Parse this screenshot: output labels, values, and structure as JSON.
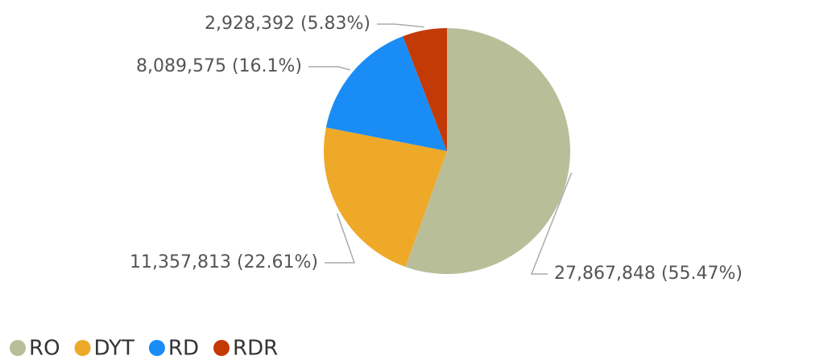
{
  "chart_data": {
    "type": "pie",
    "categories": [
      "RO",
      "DYT",
      "RD",
      "RDR"
    ],
    "values": [
      27867848,
      11357813,
      8089575,
      2928392
    ],
    "value_labels": [
      "27,867,848 (55.47%)",
      "11,357,813 (22.61%)",
      "8,089,575 (16.1%)",
      "2,928,392 (5.83%)"
    ],
    "colors": [
      "#b8bf98",
      "#efa928",
      "#1a8cf5",
      "#c33a06"
    ],
    "legend": "bottom-left"
  }
}
